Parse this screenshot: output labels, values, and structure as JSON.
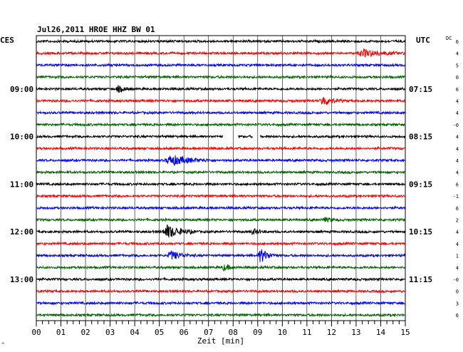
{
  "header": {
    "title": "Jul26,2011   HROE HHZ BW 01",
    "left_zone": "CES",
    "right_zone": "UTC",
    "dc_label": "DC"
  },
  "chart_data": {
    "type": "line",
    "title": "Jul26,2011   HROE HHZ BW 01",
    "xlabel": "Zeit [min]",
    "xlim": [
      0,
      15
    ],
    "x_ticks": [
      "00",
      "01",
      "02",
      "03",
      "04",
      "05",
      "06",
      "07",
      "08",
      "09",
      "10",
      "11",
      "12",
      "13",
      "14",
      "15"
    ],
    "grid": true,
    "left_labels": [
      {
        "row": 4,
        "text": "09:00"
      },
      {
        "row": 8,
        "text": "10:00"
      },
      {
        "row": 12,
        "text": "11:00"
      },
      {
        "row": 16,
        "text": "12:00"
      },
      {
        "row": 20,
        "text": "13:00"
      }
    ],
    "right_labels": [
      {
        "row": 4,
        "text": "07:15"
      },
      {
        "row": 8,
        "text": "08:15"
      },
      {
        "row": 12,
        "text": "09:15"
      },
      {
        "row": 16,
        "text": "10:15"
      },
      {
        "row": 20,
        "text": "11:15"
      }
    ],
    "dc_values": [
      "6",
      "4",
      "5",
      "0",
      "6",
      "4",
      "4",
      "-0",
      "4",
      "4",
      "4",
      "4",
      "6",
      "-1",
      "6",
      "2",
      "4",
      "4",
      "1",
      "4",
      "-0",
      "0",
      "3",
      "6"
    ],
    "colors": [
      "#000000",
      "#ff0000",
      "#0000ff",
      "#006400"
    ],
    "events": [
      {
        "row": 1,
        "start": 13.0,
        "end": 15.0,
        "amp": 5
      },
      {
        "row": 4,
        "start": 3.2,
        "end": 4.0,
        "amp": 4
      },
      {
        "row": 5,
        "start": 11.5,
        "end": 12.5,
        "amp": 7
      },
      {
        "row": 10,
        "start": 5.2,
        "end": 7.2,
        "amp": 7
      },
      {
        "row": 15,
        "start": 11.6,
        "end": 12.3,
        "amp": 3
      },
      {
        "row": 16,
        "start": 5.1,
        "end": 6.6,
        "amp": 9
      },
      {
        "row": 16,
        "start": 8.7,
        "end": 9.4,
        "amp": 4
      },
      {
        "row": 18,
        "start": 5.3,
        "end": 6.5,
        "amp": 6
      },
      {
        "row": 18,
        "start": 9.0,
        "end": 9.8,
        "amp": 10
      },
      {
        "row": 19,
        "start": 7.5,
        "end": 8.3,
        "amp": 4
      }
    ],
    "gaps": [
      {
        "row": 8,
        "start": 7.6,
        "end": 8.2
      },
      {
        "row": 8,
        "start": 8.8,
        "end": 9.1
      }
    ],
    "rows": 24
  }
}
